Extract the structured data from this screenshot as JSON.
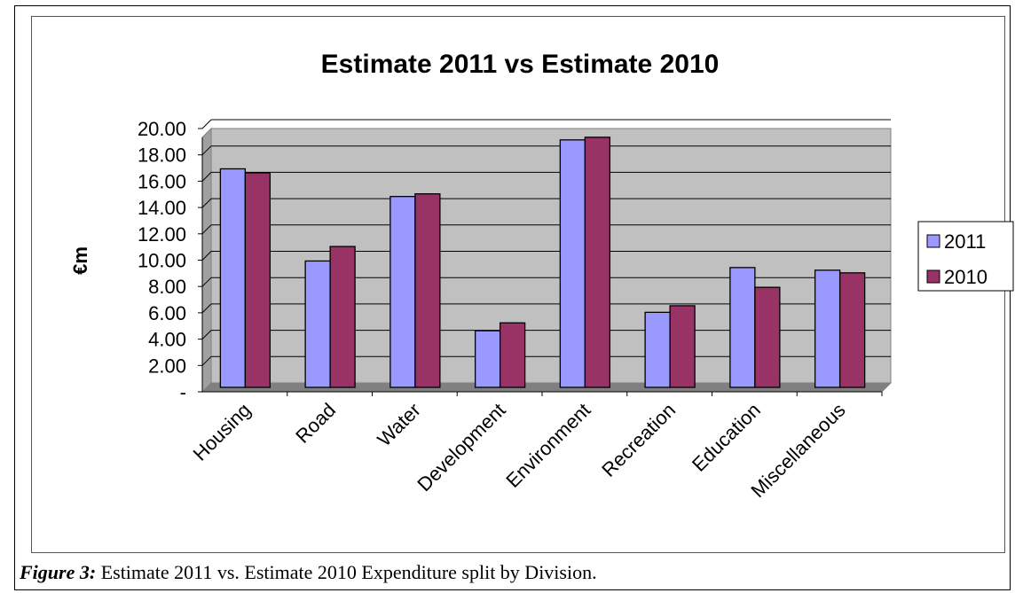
{
  "caption": {
    "label": "Figure 3:",
    "text": "Estimate 2011 vs. Estimate 2010 Expenditure split by Division."
  },
  "chart_data": {
    "type": "bar",
    "title": "Estimate 2011 vs  Estimate 2010",
    "xlabel": "",
    "ylabel": "€m",
    "ylim": [
      0,
      20
    ],
    "yticks": [
      "-",
      "2.00",
      "4.00",
      "6.00",
      "8.00",
      "10.00",
      "12.00",
      "14.00",
      "16.00",
      "18.00",
      "20.00"
    ],
    "categories": [
      "Housing",
      "Road",
      "Water",
      "Development",
      "Environment",
      "Recreation",
      "Education",
      "Miscellaneous"
    ],
    "series": [
      {
        "name": "2011",
        "color": "#9999ff",
        "values": [
          16.6,
          9.6,
          14.5,
          4.3,
          18.8,
          5.7,
          9.1,
          8.9
        ]
      },
      {
        "name": "2010",
        "color": "#993366",
        "values": [
          16.3,
          10.7,
          14.7,
          4.9,
          19.0,
          6.2,
          7.6,
          8.7
        ]
      }
    ],
    "grid": true,
    "plot_background": "#c0c0c0",
    "legend_position": "right"
  }
}
